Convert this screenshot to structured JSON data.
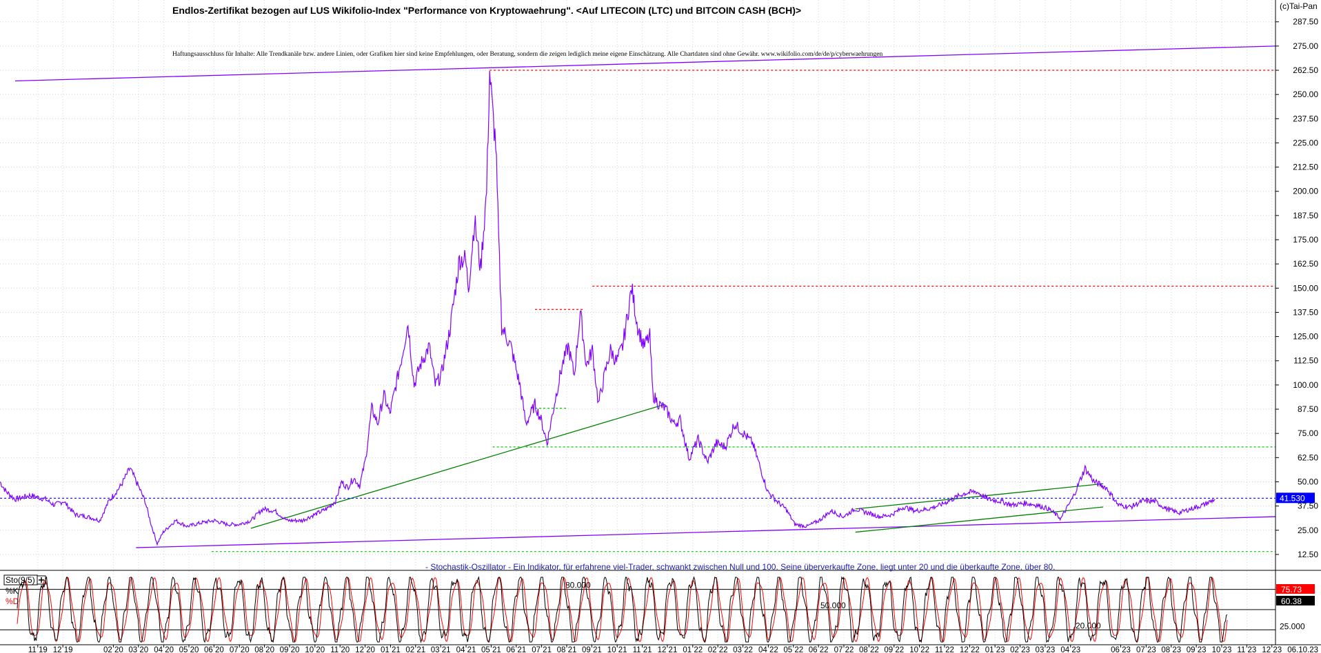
{
  "chart_data": {
    "type": "line",
    "title": "Endlos-Zertifikat bezogen auf LUS Wikifolio-Index \"Performance von Kryptowaehrung\". <Auf LITECOIN (LTC) und BITCOIN CASH (BCH)>",
    "disclaimer": "Haftungsausschluss für Inhalte: Alle Trendkanäle bzw. andere Linien, oder Grafiken hier sind keine Empfehlungen, oder Beratung, sondern die zeigen lediglich meine eigene Einschätzung. Alle Chartdaten sind ohne Gewähr. www.wikifolio.com/de/de/p/cyberwaehrungen",
    "copyright": "(c)Tai-Pan",
    "price_axis": {
      "ylim": [
        5,
        297
      ],
      "ticks": [
        12.5,
        25.0,
        37.5,
        50.0,
        62.5,
        75.0,
        87.5,
        100.0,
        112.5,
        125.0,
        137.5,
        150.0,
        162.5,
        175.0,
        187.5,
        200.0,
        212.5,
        225.0,
        237.5,
        250.0,
        262.5,
        275.0,
        287.5
      ],
      "tick_labels": [
        "12.50",
        "25.00",
        "37.50",
        "50.00",
        "62.50",
        "75.00",
        "87.50",
        "100.00",
        "112.50",
        "125.00",
        "137.50",
        "150.00",
        "162.50",
        "175.00",
        "187.50",
        "200.00",
        "212.50",
        "225.00",
        "237.50",
        "250.00",
        "262.50",
        "275.00",
        "287.50"
      ],
      "grid": true
    },
    "x_axis": {
      "xlim": [
        2019.75,
        2023.97
      ],
      "month_labels": [
        "11 19",
        "12 19",
        "02 20",
        "03 20",
        "04 20",
        "05 20",
        "06 20",
        "07 20",
        "08 20",
        "09 20",
        "10 20",
        "11 20",
        "12 20",
        "01 21",
        "02 21",
        "03 21",
        "04 21",
        "05 21",
        "06 21",
        "07 21",
        "08 21",
        "09 21",
        "10 21",
        "11 21",
        "12 21",
        "01 22",
        "02 22",
        "03 22",
        "04 22",
        "05 22",
        "06 22",
        "07 22",
        "08 22",
        "09 22",
        "10 22",
        "11 22",
        "12 22",
        "01 23",
        "02 23",
        "03 23",
        "04 23",
        "06 23",
        "07 23",
        "08 23",
        "09 23",
        "10 23",
        "11 23",
        "12 23",
        "06.10.23"
      ],
      "month_positions": [
        2019.875,
        2019.958,
        2020.125,
        2020.208,
        2020.292,
        2020.375,
        2020.458,
        2020.542,
        2020.625,
        2020.708,
        2020.792,
        2020.875,
        2020.958,
        2021.042,
        2021.125,
        2021.208,
        2021.292,
        2021.375,
        2021.458,
        2021.542,
        2021.625,
        2021.708,
        2021.792,
        2021.875,
        2021.958,
        2022.042,
        2022.125,
        2022.208,
        2022.292,
        2022.375,
        2022.458,
        2022.542,
        2022.625,
        2022.708,
        2022.792,
        2022.875,
        2022.958,
        2023.042,
        2023.125,
        2023.208,
        2023.292,
        2023.458,
        2023.542,
        2023.625,
        2023.708,
        2023.792,
        2023.875,
        2023.958,
        2023.77
      ]
    },
    "series": [
      {
        "name": "",
        "color": "#8000ff",
        "points": [
          [
            2019.75,
            50
          ],
          [
            2019.77,
            45
          ],
          [
            2019.8,
            41
          ],
          [
            2019.85,
            43
          ],
          [
            2019.9,
            41
          ],
          [
            2019.93,
            38
          ],
          [
            2019.96,
            40
          ],
          [
            2020.0,
            33
          ],
          [
            2020.04,
            32
          ],
          [
            2020.08,
            30
          ],
          [
            2020.11,
            40
          ],
          [
            2020.15,
            48
          ],
          [
            2020.18,
            57
          ],
          [
            2020.21,
            47
          ],
          [
            2020.23,
            40
          ],
          [
            2020.25,
            28
          ],
          [
            2020.27,
            18
          ],
          [
            2020.29,
            24
          ],
          [
            2020.33,
            30
          ],
          [
            2020.37,
            27
          ],
          [
            2020.42,
            29
          ],
          [
            2020.46,
            30
          ],
          [
            2020.5,
            28
          ],
          [
            2020.54,
            28
          ],
          [
            2020.58,
            30
          ],
          [
            2020.62,
            36
          ],
          [
            2020.66,
            35
          ],
          [
            2020.7,
            30
          ],
          [
            2020.75,
            30
          ],
          [
            2020.79,
            33
          ],
          [
            2020.83,
            36
          ],
          [
            2020.86,
            40
          ],
          [
            2020.88,
            50
          ],
          [
            2020.9,
            47
          ],
          [
            2020.92,
            52
          ],
          [
            2020.94,
            48
          ],
          [
            2020.96,
            62
          ],
          [
            2020.98,
            88
          ],
          [
            2021.0,
            80
          ],
          [
            2021.02,
            95
          ],
          [
            2021.04,
            85
          ],
          [
            2021.06,
            100
          ],
          [
            2021.08,
            115
          ],
          [
            2021.1,
            132
          ],
          [
            2021.12,
            100
          ],
          [
            2021.14,
            110
          ],
          [
            2021.17,
            120
          ],
          [
            2021.19,
            100
          ],
          [
            2021.21,
            105
          ],
          [
            2021.24,
            130
          ],
          [
            2021.27,
            165
          ],
          [
            2021.29,
            165
          ],
          [
            2021.3,
            150
          ],
          [
            2021.32,
            185
          ],
          [
            2021.34,
            160
          ],
          [
            2021.36,
            200
          ],
          [
            2021.37,
            262
          ],
          [
            2021.38,
            240
          ],
          [
            2021.39,
            225
          ],
          [
            2021.4,
            175
          ],
          [
            2021.41,
            130
          ],
          [
            2021.44,
            120
          ],
          [
            2021.47,
            100
          ],
          [
            2021.49,
            80
          ],
          [
            2021.52,
            90
          ],
          [
            2021.54,
            82
          ],
          [
            2021.56,
            70
          ],
          [
            2021.59,
            95
          ],
          [
            2021.61,
            110
          ],
          [
            2021.63,
            120
          ],
          [
            2021.65,
            105
          ],
          [
            2021.67,
            138
          ],
          [
            2021.69,
            110
          ],
          [
            2021.71,
            118
          ],
          [
            2021.73,
            90
          ],
          [
            2021.75,
            105
          ],
          [
            2021.77,
            118
          ],
          [
            2021.79,
            112
          ],
          [
            2021.81,
            120
          ],
          [
            2021.83,
            140
          ],
          [
            2021.84,
            150
          ],
          [
            2021.86,
            130
          ],
          [
            2021.88,
            120
          ],
          [
            2021.9,
            125
          ],
          [
            2021.91,
            95
          ],
          [
            2021.93,
            90
          ],
          [
            2021.95,
            88
          ],
          [
            2021.98,
            80
          ],
          [
            2022.0,
            82
          ],
          [
            2022.03,
            62
          ],
          [
            2022.06,
            72
          ],
          [
            2022.09,
            60
          ],
          [
            2022.12,
            70
          ],
          [
            2022.15,
            68
          ],
          [
            2022.18,
            80
          ],
          [
            2022.21,
            75
          ],
          [
            2022.24,
            70
          ],
          [
            2022.27,
            55
          ],
          [
            2022.29,
            45
          ],
          [
            2022.32,
            40
          ],
          [
            2022.35,
            36
          ],
          [
            2022.38,
            28
          ],
          [
            2022.42,
            27
          ],
          [
            2022.46,
            30
          ],
          [
            2022.5,
            35
          ],
          [
            2022.54,
            32
          ],
          [
            2022.58,
            36
          ],
          [
            2022.62,
            34
          ],
          [
            2022.66,
            32
          ],
          [
            2022.7,
            33
          ],
          [
            2022.74,
            37
          ],
          [
            2022.78,
            35
          ],
          [
            2022.82,
            36
          ],
          [
            2022.86,
            38
          ],
          [
            2022.9,
            41
          ],
          [
            2022.94,
            44
          ],
          [
            2022.98,
            45
          ],
          [
            2023.02,
            41
          ],
          [
            2023.06,
            40
          ],
          [
            2023.1,
            38
          ],
          [
            2023.14,
            39
          ],
          [
            2023.18,
            38
          ],
          [
            2023.22,
            36
          ],
          [
            2023.26,
            31
          ],
          [
            2023.3,
            42
          ],
          [
            2023.34,
            57
          ],
          [
            2023.37,
            50
          ],
          [
            2023.41,
            47
          ],
          [
            2023.45,
            38
          ],
          [
            2023.49,
            37
          ],
          [
            2023.53,
            40
          ],
          [
            2023.57,
            40
          ],
          [
            2023.61,
            36
          ],
          [
            2023.65,
            34
          ],
          [
            2023.69,
            36
          ],
          [
            2023.73,
            38
          ],
          [
            2023.77,
            41
          ]
        ]
      }
    ],
    "trendlines": [
      {
        "color": "#8000ff",
        "dash": false,
        "points": [
          [
            2019.8,
            257
          ],
          [
            2023.97,
            275
          ]
        ]
      },
      {
        "color": "#8000ff",
        "dash": false,
        "points": [
          [
            2020.2,
            16
          ],
          [
            2023.97,
            32
          ]
        ]
      },
      {
        "color": "#008000",
        "dash": false,
        "points": [
          [
            2020.58,
            26
          ],
          [
            2021.95,
            90
          ]
        ]
      },
      {
        "color": "#008000",
        "dash": false,
        "points": [
          [
            2022.58,
            36
          ],
          [
            2023.4,
            49
          ]
        ]
      },
      {
        "color": "#008000",
        "dash": false,
        "points": [
          [
            2022.58,
            24
          ],
          [
            2023.4,
            37
          ]
        ]
      },
      {
        "color": "#ff0000",
        "dash": true,
        "points": [
          [
            2021.37,
            262.5
          ],
          [
            2023.97,
            262.5
          ]
        ]
      },
      {
        "color": "#ff0000",
        "dash": true,
        "points": [
          [
            2021.52,
            139
          ],
          [
            2021.68,
            139
          ]
        ]
      },
      {
        "color": "#ff0000",
        "dash": true,
        "points": [
          [
            2021.71,
            151
          ],
          [
            2023.97,
            151
          ]
        ]
      },
      {
        "color": "#00cc00",
        "dash": true,
        "points": [
          [
            2021.38,
            68
          ],
          [
            2023.97,
            68
          ]
        ]
      },
      {
        "color": "#00cc00",
        "dash": true,
        "points": [
          [
            2021.52,
            88
          ],
          [
            2021.63,
            88
          ]
        ]
      },
      {
        "color": "#00cc00",
        "dash": true,
        "points": [
          [
            2020.45,
            14
          ],
          [
            2023.97,
            14
          ]
        ]
      },
      {
        "color": "#0000ff",
        "dash": true,
        "points": [
          [
            2019.75,
            41.53
          ],
          [
            2023.97,
            41.53
          ]
        ]
      }
    ],
    "last_value": {
      "value": 41.53,
      "label": "41.530"
    },
    "oscillator": {
      "title": "Sto(9/5)",
      "k_label": "%K",
      "d_label": "%D",
      "note": "- Stochastik-Oszillator - Ein Indikator, für erfahrene viel-Trader, schwankt zwischen Null und 100. Seine überverkaufte Zone, liegt unter 20 und die überkaufte Zone, über 80.",
      "ylim": [
        0,
        100
      ],
      "levels": [
        {
          "value": 80,
          "label": "80.000"
        },
        {
          "value": 50,
          "label": "50.000"
        },
        {
          "value": 20,
          "label": "20.000"
        }
      ],
      "tick": {
        "value": 25,
        "label": "25.000"
      },
      "last_k": {
        "value": 75.73,
        "label": "75.73"
      },
      "last_d": {
        "value": 60.38,
        "label": "60.38"
      },
      "cycles": 56
    },
    "grid": true
  }
}
